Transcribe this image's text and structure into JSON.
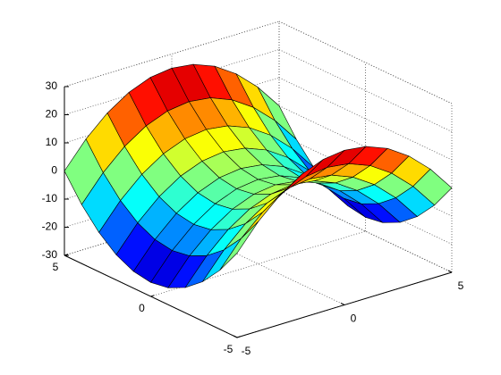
{
  "chart_data": {
    "type": "surface",
    "x": [
      -5,
      -4,
      -3,
      -2,
      -1,
      0,
      1,
      2,
      3,
      4,
      5
    ],
    "y": [
      -5,
      -4,
      -3,
      -2,
      -1,
      0,
      1,
      2,
      3,
      4,
      5
    ],
    "z": [
      [
        0,
        9,
        16,
        21,
        24,
        25,
        24,
        21,
        16,
        9,
        0
      ],
      [
        -9,
        0,
        7,
        12,
        15,
        16,
        15,
        12,
        7,
        0,
        -9
      ],
      [
        -16,
        -7,
        0,
        5,
        8,
        9,
        8,
        5,
        0,
        -7,
        -16
      ],
      [
        -21,
        -12,
        -5,
        0,
        3,
        4,
        3,
        0,
        -5,
        -12,
        -21
      ],
      [
        -24,
        -15,
        -8,
        -3,
        0,
        1,
        0,
        -3,
        -8,
        -15,
        -24
      ],
      [
        -25,
        -16,
        -9,
        -4,
        -1,
        0,
        -1,
        -4,
        -9,
        -16,
        -25
      ],
      [
        -24,
        -15,
        -8,
        -3,
        0,
        1,
        0,
        -3,
        -8,
        -15,
        -24
      ],
      [
        -21,
        -12,
        -5,
        0,
        3,
        4,
        3,
        0,
        -5,
        -12,
        -21
      ],
      [
        -16,
        -7,
        0,
        5,
        8,
        9,
        8,
        5,
        0,
        -7,
        -16
      ],
      [
        -9,
        0,
        7,
        12,
        15,
        16,
        15,
        12,
        7,
        0,
        -9
      ],
      [
        0,
        9,
        16,
        21,
        24,
        25,
        24,
        21,
        16,
        9,
        0
      ]
    ],
    "xlim": [
      -5,
      5
    ],
    "ylim": [
      -5,
      5
    ],
    "zlim": [
      -30,
      30
    ],
    "xticks": [
      -5,
      0,
      5
    ],
    "yticks": [
      -5,
      0,
      5
    ],
    "zticks": [
      -30,
      -20,
      -10,
      0,
      10,
      20,
      30
    ],
    "grid": true,
    "colormap": "jet"
  }
}
